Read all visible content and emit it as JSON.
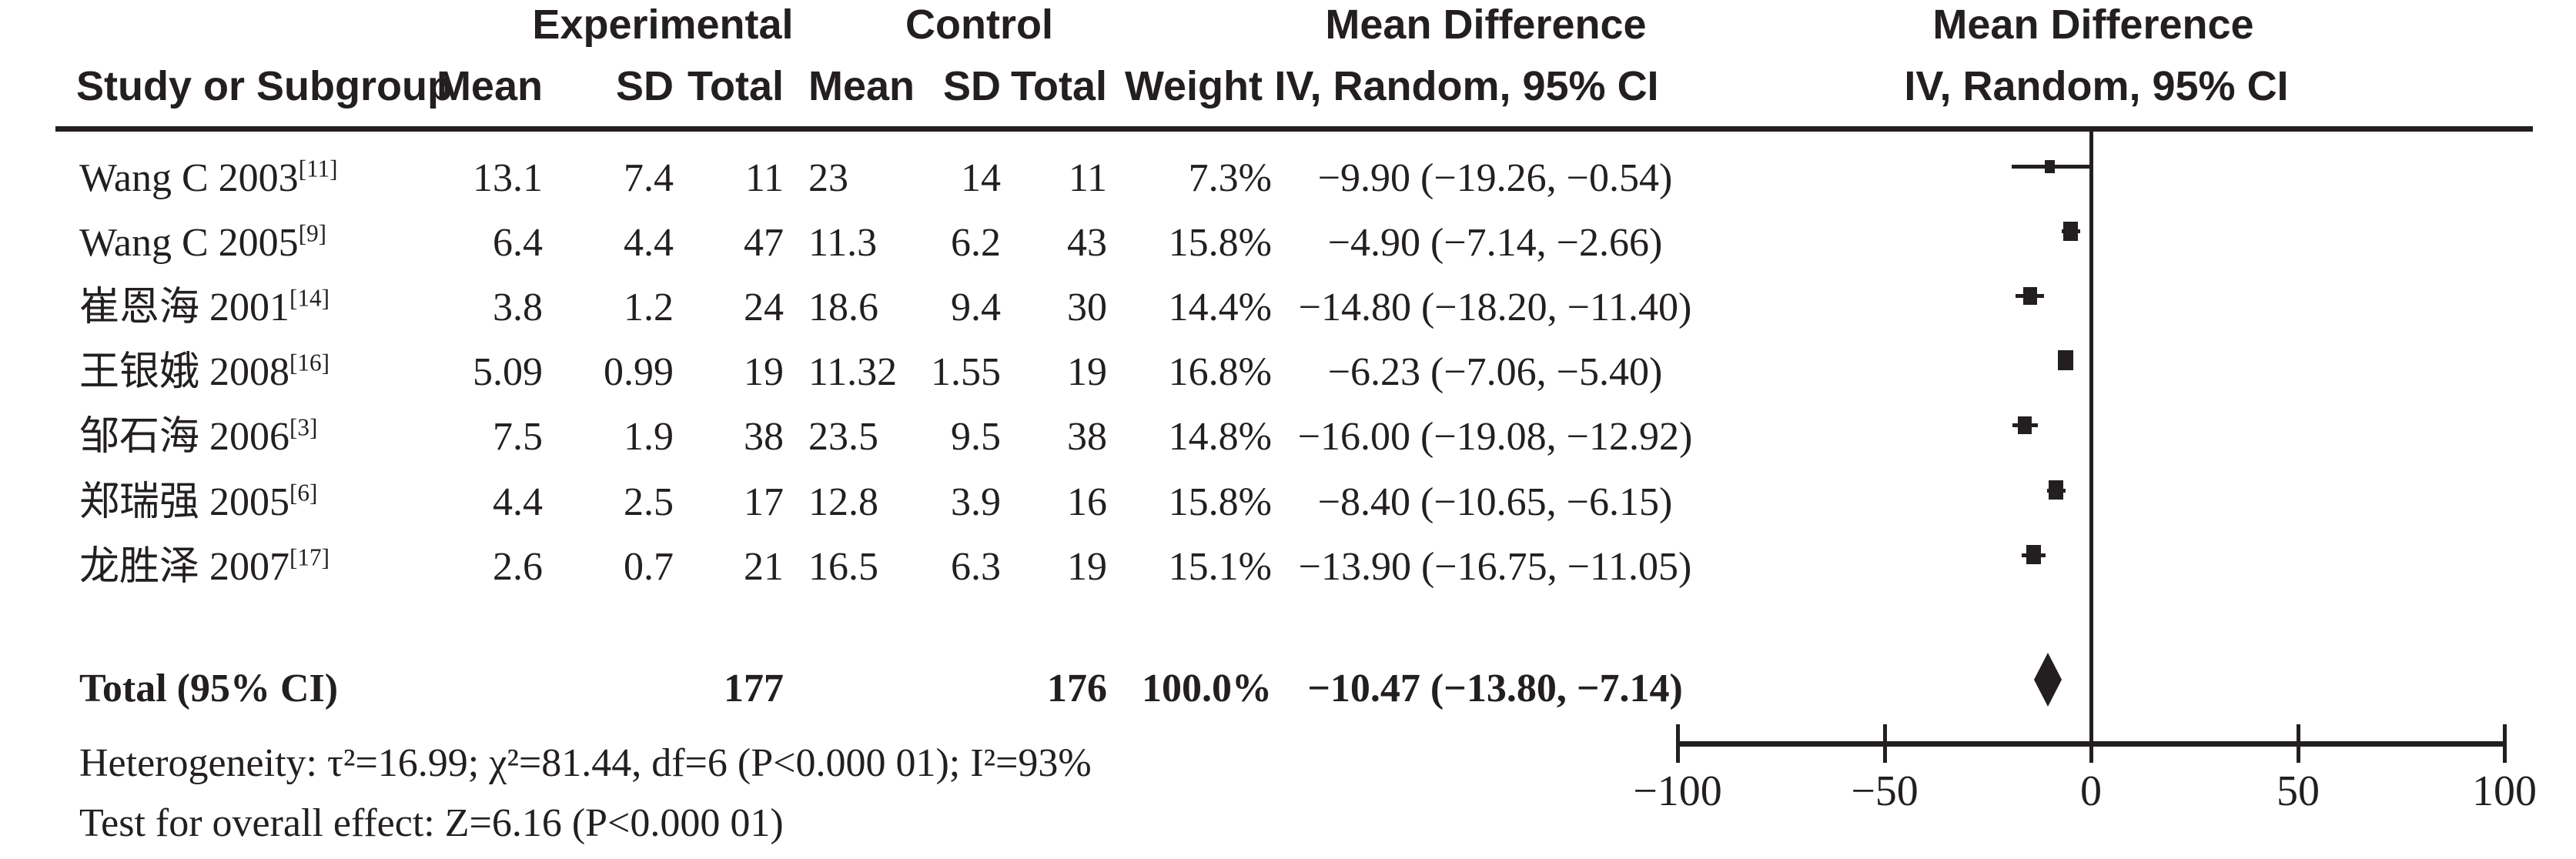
{
  "chart_data": {
    "type": "forest",
    "group_headers": {
      "experimental": "Experimental",
      "control": "Control",
      "md_left": "Mean Difference",
      "md_right": "Mean Difference"
    },
    "column_headers": {
      "study": "Study or Subgroup",
      "mean": "Mean",
      "sd": "SD",
      "total": "Total",
      "weight": "Weight",
      "iv_random": "IV, Random, 95% CI"
    },
    "rows": [
      {
        "study": "Wang C 2003",
        "ref": "[11]",
        "exp_mean": "13.1",
        "exp_sd": "7.4",
        "exp_total": "11",
        "ctrl_mean": "23",
        "ctrl_sd": "14",
        "ctrl_total": "11",
        "weight": "7.3%",
        "weight_value": 7.3,
        "md": -9.9,
        "ci_low": -19.26,
        "ci_high": -0.54,
        "md_text": "−9.90 (−19.26, −0.54)"
      },
      {
        "study": "Wang C 2005",
        "ref": "[9]",
        "exp_mean": "6.4",
        "exp_sd": "4.4",
        "exp_total": "47",
        "ctrl_mean": "11.3",
        "ctrl_sd": "6.2",
        "ctrl_total": "43",
        "weight": "15.8%",
        "weight_value": 15.8,
        "md": -4.9,
        "ci_low": -7.14,
        "ci_high": -2.66,
        "md_text": "−4.90 (−7.14, −2.66)"
      },
      {
        "study": "崔恩海 2001",
        "ref": "[14]",
        "exp_mean": "3.8",
        "exp_sd": "1.2",
        "exp_total": "24",
        "ctrl_mean": "18.6",
        "ctrl_sd": "9.4",
        "ctrl_total": "30",
        "weight": "14.4%",
        "weight_value": 14.4,
        "md": -14.8,
        "ci_low": -18.2,
        "ci_high": -11.4,
        "md_text": "−14.80 (−18.20, −11.40)"
      },
      {
        "study": "王银娥 2008",
        "ref": "[16]",
        "exp_mean": "5.09",
        "exp_sd": "0.99",
        "exp_total": "19",
        "ctrl_mean": "11.32",
        "ctrl_sd": "1.55",
        "ctrl_total": "19",
        "weight": "16.8%",
        "weight_value": 16.8,
        "md": -6.23,
        "ci_low": -7.06,
        "ci_high": -5.4,
        "md_text": "−6.23 (−7.06, −5.40)"
      },
      {
        "study": "邹石海 2006",
        "ref": "[3]",
        "exp_mean": "7.5",
        "exp_sd": "1.9",
        "exp_total": "38",
        "ctrl_mean": "23.5",
        "ctrl_sd": "9.5",
        "ctrl_total": "38",
        "weight": "14.8%",
        "weight_value": 14.8,
        "md": -16.0,
        "ci_low": -19.08,
        "ci_high": -12.92,
        "md_text": "−16.00 (−19.08, −12.92)"
      },
      {
        "study": "郑瑞强 2005",
        "ref": "[6]",
        "exp_mean": "4.4",
        "exp_sd": "2.5",
        "exp_total": "17",
        "ctrl_mean": "12.8",
        "ctrl_sd": "3.9",
        "ctrl_total": "16",
        "weight": "15.8%",
        "weight_value": 15.8,
        "md": -8.4,
        "ci_low": -10.65,
        "ci_high": -6.15,
        "md_text": "−8.40 (−10.65, −6.15)"
      },
      {
        "study": "龙胜泽 2007",
        "ref": "[17]",
        "exp_mean": "2.6",
        "exp_sd": "0.7",
        "exp_total": "21",
        "ctrl_mean": "16.5",
        "ctrl_sd": "6.3",
        "ctrl_total": "19",
        "weight": "15.1%",
        "weight_value": 15.1,
        "md": -13.9,
        "ci_low": -16.75,
        "ci_high": -11.05,
        "md_text": "−13.90 (−16.75, −11.05)"
      }
    ],
    "total": {
      "label": "Total (95% CI)",
      "exp_total": "177",
      "ctrl_total": "176",
      "weight": "100.0%",
      "weight_value": 100.0,
      "md": -10.47,
      "ci_low": -13.8,
      "ci_high": -7.14,
      "md_text": "−10.47 (−13.80, −7.14)"
    },
    "axis": {
      "min": -100,
      "max": 100,
      "ticks": [
        -100,
        -50,
        0,
        50,
        100
      ],
      "tick_labels": [
        "−100",
        "−50",
        "0",
        "50",
        "100"
      ]
    },
    "footer": {
      "heterogeneity": "Heterogeneity: τ²=16.99; χ²=81.44, df=6 (P<0.000 01); I²=93%",
      "overall_effect": "Test for overall effect: Z=6.16 (P<0.000 01)"
    },
    "colors": {
      "ink": "#231f20",
      "background": "#ffffff"
    }
  }
}
